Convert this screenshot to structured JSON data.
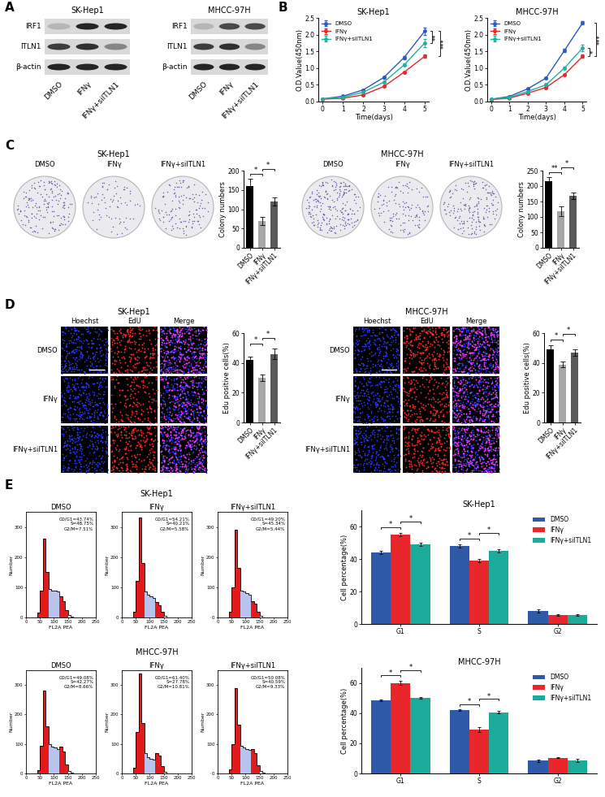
{
  "panel_labels": [
    "A",
    "B",
    "C",
    "D",
    "E"
  ],
  "blots": [
    {
      "cell_line": "SK-Hep1",
      "rows": [
        "IRF1",
        "ITLN1",
        "β-actin"
      ],
      "lanes": [
        "DMSO",
        "IFNγ",
        "IFNγ+siITLN1"
      ],
      "band_intensity": [
        [
          0.3,
          0.9,
          0.9
        ],
        [
          0.8,
          0.85,
          0.5
        ],
        [
          0.9,
          0.9,
          0.9
        ]
      ]
    },
    {
      "cell_line": "MHCC-97H",
      "rows": [
        "IRF1",
        "ITLN1",
        "β-actin"
      ],
      "lanes": [
        "DMSO",
        "IFNγ",
        "IFNγ+siITLN1"
      ],
      "band_intensity": [
        [
          0.3,
          0.75,
          0.75
        ],
        [
          0.8,
          0.85,
          0.5
        ],
        [
          0.9,
          0.9,
          0.9
        ]
      ]
    }
  ],
  "chart_data": [
    {
      "type": "line",
      "title": "SK-Hep1",
      "x": [
        0,
        1,
        2,
        3,
        4,
        5
      ],
      "xlabel": "Time(days)",
      "ylabel": "O.D.Value(450nm)",
      "xlim": [
        -0.2,
        5.2
      ],
      "xticks": [
        0,
        1,
        2,
        3,
        4,
        5
      ],
      "ylim": [
        0,
        2.5
      ],
      "yticks": [
        {
          "value": 0,
          "label": "0.0"
        },
        {
          "value": 0.5,
          "label": "0.5"
        },
        {
          "value": 1,
          "label": "1.0"
        },
        {
          "value": 1.5,
          "label": "1.5"
        },
        {
          "value": 2,
          "label": "2.0"
        },
        {
          "value": 2.5,
          "label": "2.5"
        }
      ],
      "legend": "upper left",
      "marker": "o",
      "series": [
        {
          "name": "DMSO",
          "color": "#2b59c3",
          "values": [
            0.08,
            0.16,
            0.35,
            0.72,
            1.32,
            2.1
          ],
          "errors": [
            0.01,
            0.01,
            0.02,
            0.03,
            0.05,
            0.1
          ]
        },
        {
          "name": "IFNγ",
          "color": "#e8262b",
          "values": [
            0.07,
            0.1,
            0.2,
            0.45,
            0.88,
            1.35
          ],
          "errors": [
            0.01,
            0.01,
            0.01,
            0.02,
            0.03,
            0.05
          ]
        },
        {
          "name": "IFNγ+siITLN1",
          "color": "#20b2a0",
          "values": [
            0.08,
            0.13,
            0.28,
            0.58,
            1.1,
            1.75
          ],
          "errors": [
            0.01,
            0.01,
            0.02,
            0.03,
            0.04,
            0.12
          ]
        }
      ],
      "significance": [
        {
          "series": [
            0,
            2
          ],
          "label": "**"
        },
        {
          "series": [
            0,
            1
          ],
          "label": "***"
        }
      ]
    },
    {
      "type": "line",
      "title": "MHCC-97H",
      "x": [
        0,
        1,
        2,
        3,
        4,
        5
      ],
      "xlabel": "Time(days)",
      "ylabel": "O.D.Value(450nm)",
      "xlim": [
        -0.2,
        5.2
      ],
      "xticks": [
        0,
        1,
        2,
        3,
        4,
        5
      ],
      "ylim": [
        0,
        2.5
      ],
      "yticks": [
        {
          "value": 0,
          "label": "0.0"
        },
        {
          "value": 0.5,
          "label": "0.5"
        },
        {
          "value": 1,
          "label": "1.0"
        },
        {
          "value": 1.5,
          "label": "1.5"
        },
        {
          "value": 2,
          "label": "2.0"
        },
        {
          "value": 2.5,
          "label": "2.5"
        }
      ],
      "legend": "upper left",
      "marker": "o",
      "series": [
        {
          "name": "DMSO",
          "color": "#2b59c3",
          "values": [
            0.07,
            0.15,
            0.38,
            0.7,
            1.52,
            2.35
          ],
          "errors": [
            0.01,
            0.01,
            0.02,
            0.03,
            0.05,
            0.05
          ]
        },
        {
          "name": "IFNγ",
          "color": "#e8262b",
          "values": [
            0.06,
            0.1,
            0.25,
            0.42,
            0.8,
            1.35
          ],
          "errors": [
            0.01,
            0.01,
            0.01,
            0.02,
            0.03,
            0.05
          ]
        },
        {
          "name": "IFNγ+siITLN1",
          "color": "#20b2a0",
          "values": [
            0.07,
            0.12,
            0.3,
            0.5,
            1.0,
            1.6
          ],
          "errors": [
            0.01,
            0.01,
            0.02,
            0.03,
            0.04,
            0.1
          ]
        }
      ],
      "significance": [
        {
          "series": [
            1,
            2
          ],
          "label": "*"
        },
        {
          "series": [
            0,
            1
          ],
          "label": "***"
        }
      ]
    },
    {
      "type": "bar",
      "categories": [
        "DMSO",
        "IFNγ",
        "IFNγ+siITLN1"
      ],
      "values": [
        160,
        70,
        120
      ],
      "errors": [
        20,
        10,
        10
      ],
      "colors": [
        "#000000",
        "#a6a6a6",
        "#595959"
      ],
      "ylabel": "Colony numbers",
      "ylim": [
        0,
        200
      ],
      "yticks": [
        0,
        50,
        100,
        150,
        200
      ],
      "significance": [
        {
          "between": [
            0,
            1
          ],
          "label": "*"
        },
        {
          "between": [
            1,
            2
          ],
          "label": "*"
        }
      ]
    },
    {
      "type": "bar",
      "categories": [
        "DMSO",
        "IFNγ",
        "IFNγ+siITLN1"
      ],
      "values": [
        215,
        118,
        168
      ],
      "errors": [
        15,
        15,
        10
      ],
      "colors": [
        "#000000",
        "#a6a6a6",
        "#595959"
      ],
      "ylabel": "Colony numbers",
      "ylim": [
        0,
        250
      ],
      "yticks": [
        0,
        50,
        100,
        150,
        200,
        250
      ],
      "significance": [
        {
          "between": [
            0,
            1
          ],
          "label": "**"
        },
        {
          "between": [
            1,
            2
          ],
          "label": "*"
        }
      ]
    },
    {
      "type": "bar",
      "categories": [
        "DMSO",
        "IFNγ",
        "IFNγ+siITLN1"
      ],
      "values": [
        42,
        30,
        46
      ],
      "errors": [
        2,
        2,
        3.5
      ],
      "colors": [
        "#000000",
        "#a6a6a6",
        "#595959"
      ],
      "ylabel": "Edu positive cells(%)",
      "ylim": [
        0,
        60
      ],
      "yticks": [
        0,
        20,
        40,
        60
      ],
      "significance": [
        {
          "between": [
            0,
            1
          ],
          "label": "*"
        },
        {
          "between": [
            1,
            2
          ],
          "label": "*"
        }
      ]
    },
    {
      "type": "bar",
      "categories": [
        "DMSO",
        "IFNγ",
        "IFNγ+siITLN1"
      ],
      "values": [
        49,
        39,
        47
      ],
      "errors": [
        3,
        2,
        2
      ],
      "colors": [
        "#000000",
        "#a6a6a6",
        "#595959"
      ],
      "ylabel": "Edu positive cells(%)",
      "ylim": [
        0,
        60
      ],
      "yticks": [
        0,
        20,
        40,
        60
      ],
      "significance": [
        {
          "between": [
            0,
            1
          ],
          "label": "*"
        },
        {
          "between": [
            1,
            2
          ],
          "label": "*"
        }
      ]
    },
    {
      "type": "bar",
      "title": "SK-Hep1",
      "categories": [
        "G1",
        "S",
        "G2"
      ],
      "ylabel": "Cell percentage(%)",
      "ylim": [
        0,
        70
      ],
      "yticks": [
        0,
        20,
        40,
        60
      ],
      "legend": "upper right",
      "series": [
        {
          "name": "DMSO",
          "color": "#2e5aa8",
          "values": [
            44,
            48,
            8
          ],
          "errors": [
            0.8,
            1.2,
            1
          ]
        },
        {
          "name": "IFNγ",
          "color": "#e8262b",
          "values": [
            55,
            39,
            5.5
          ],
          "errors": [
            1,
            1.2,
            0.3
          ]
        },
        {
          "name": "IFNγ+siITLN1",
          "color": "#1bab9a",
          "values": [
            49,
            45,
            5.5
          ],
          "errors": [
            0.8,
            1,
            0.3
          ]
        }
      ],
      "significance": [
        {
          "category": 0,
          "series": [
            0,
            1
          ],
          "label": "*"
        },
        {
          "category": 0,
          "series": [
            1,
            2
          ],
          "label": "*"
        },
        {
          "category": 1,
          "series": [
            0,
            1
          ],
          "label": "*"
        },
        {
          "category": 1,
          "series": [
            1,
            2
          ],
          "label": "*"
        }
      ]
    },
    {
      "type": "bar",
      "title": "MHCC-97H",
      "categories": [
        "G1",
        "S",
        "G2"
      ],
      "ylabel": "Cell percentage(%)",
      "ylim": [
        0,
        70
      ],
      "yticks": [
        0,
        20,
        40,
        60
      ],
      "legend": "upper right",
      "series": [
        {
          "name": "DMSO",
          "color": "#2e5aa8",
          "values": [
            48.5,
            42,
            8.5
          ],
          "errors": [
            0.6,
            0.4,
            0.7
          ]
        },
        {
          "name": "IFNγ",
          "color": "#e8262b",
          "values": [
            60,
            29,
            10.5
          ],
          "errors": [
            1.5,
            1.5,
            0.5
          ]
        },
        {
          "name": "IFNγ+siITLN1",
          "color": "#1bab9a",
          "values": [
            50,
            40.5,
            8.5
          ],
          "errors": [
            0.5,
            0.8,
            1
          ]
        }
      ],
      "significance": [
        {
          "category": 0,
          "series": [
            0,
            1
          ],
          "label": "*"
        },
        {
          "category": 0,
          "series": [
            1,
            2
          ],
          "label": "*"
        },
        {
          "category": 1,
          "series": [
            0,
            1
          ],
          "label": "*"
        },
        {
          "category": 1,
          "series": [
            1,
            2
          ],
          "label": "*"
        }
      ]
    }
  ],
  "colony_images": {
    "cell_lines": [
      "SK-Hep1",
      "MHCC-97H"
    ],
    "lanes": [
      "DMSO",
      "IFNγ",
      "IFNγ+siITLN1"
    ]
  },
  "edu_images": {
    "cell_lines": [
      "SK-Hep1",
      "MHCC-97H"
    ],
    "channels": [
      "Hoechst",
      "EdU",
      "Merge"
    ],
    "rows": [
      "DMSO",
      "IFNγ",
      "IFNγ+siITLN1"
    ]
  },
  "flow": {
    "cell_lines": [
      "SK-Hep1",
      "MHCC-97H"
    ],
    "conditions": [
      "DMSO",
      "IFNγ",
      "IFNγ+siITLN1"
    ],
    "xlabel": "FL2A PEA",
    "ylabel": "Number",
    "xlim": [
      0,
      250
    ],
    "xticks": [
      0,
      50,
      100,
      150,
      200,
      250
    ],
    "ylim": [
      0,
      350
    ],
    "yticks": [
      0,
      100,
      200,
      300
    ],
    "bins": [
      0,
      10,
      20,
      30,
      40,
      50,
      60,
      70,
      80,
      90,
      100,
      110,
      120,
      130,
      140,
      150,
      160,
      170,
      180,
      190,
      200,
      210,
      220,
      230,
      240,
      250
    ],
    "colors": [
      null,
      null,
      null,
      null,
      "#e31a1c",
      "#e31a1c",
      "#e31a1c",
      "#e31a1c",
      "#b8c4ee",
      "#b8c4ee",
      "#b8c4ee",
      "#b8c4ee",
      "#e31a1c",
      "#e31a1c",
      "#e31a1c",
      null,
      null,
      null,
      null,
      null,
      null,
      null,
      null,
      null,
      null
    ],
    "histograms": [
      [
        {
          "counts": [
            0,
            0,
            0,
            0,
            15,
            90,
            260,
            150,
            95,
            90,
            88,
            85,
            70,
            55,
            25,
            8,
            2,
            0,
            0,
            0,
            0,
            0,
            0,
            0,
            0
          ],
          "annotation": "G0/G1=43.74%\nS=48.75%\nG2/M=7.51%"
        },
        {
          "counts": [
            0,
            0,
            0,
            0,
            20,
            120,
            330,
            180,
            85,
            75,
            70,
            65,
            50,
            40,
            18,
            5,
            1,
            0,
            0,
            0,
            0,
            0,
            0,
            0,
            0
          ],
          "annotation": "G0/G1=54.21%\nS=40.21%\nG2/M=5.58%"
        },
        {
          "counts": [
            0,
            0,
            0,
            0,
            18,
            100,
            290,
            165,
            90,
            85,
            80,
            75,
            55,
            45,
            20,
            6,
            1,
            0,
            0,
            0,
            0,
            0,
            0,
            0,
            0
          ],
          "annotation": "G0/G1=49.20%\nS=45.34%\nG2/M=5.44%"
        }
      ],
      [
        {
          "counts": [
            0,
            0,
            0,
            0,
            12,
            95,
            280,
            160,
            100,
            92,
            88,
            84,
            90,
            75,
            30,
            8,
            2,
            0,
            0,
            0,
            0,
            0,
            0,
            0,
            0
          ],
          "annotation": "G0/G1=49.08%\nS=42.27%\nG2/M=8.66%"
        },
        {
          "counts": [
            0,
            0,
            0,
            0,
            20,
            140,
            340,
            170,
            70,
            55,
            50,
            48,
            70,
            60,
            25,
            6,
            1,
            0,
            0,
            0,
            0,
            0,
            0,
            0,
            0
          ],
          "annotation": "G0/G1=61.40%\nS=27.78%\nG2/M=10.81%"
        },
        {
          "counts": [
            0,
            0,
            0,
            0,
            15,
            100,
            290,
            165,
            95,
            88,
            84,
            80,
            82,
            68,
            28,
            7,
            2,
            0,
            0,
            0,
            0,
            0,
            0,
            0,
            0
          ],
          "annotation": "G0/G1=50.08%\nS=40.59%\nG2/M=9.33%"
        }
      ]
    ]
  }
}
